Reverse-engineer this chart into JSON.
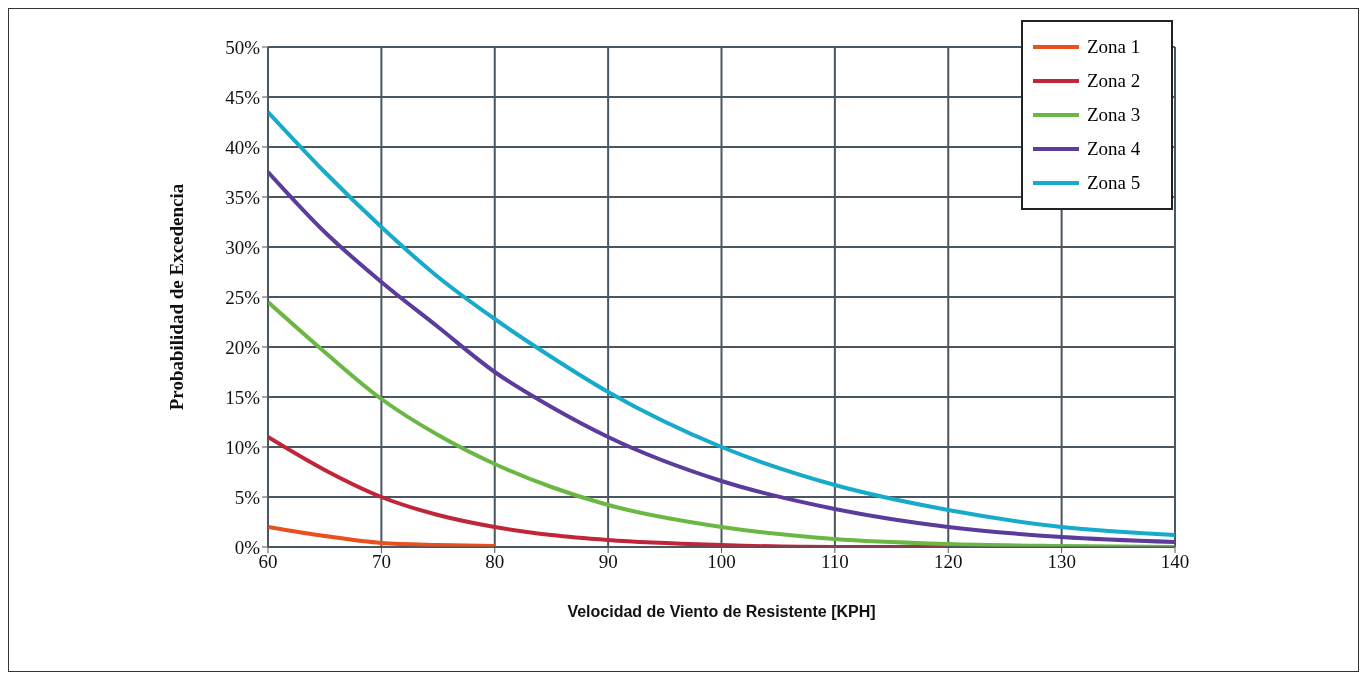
{
  "chart_data": {
    "type": "line",
    "xlabel": "Velocidad de Viento de Resistente [KPH]",
    "ylabel": "Probabilidad de Excedencia",
    "x": [
      60,
      65,
      70,
      75,
      80,
      85,
      90,
      100,
      110,
      120,
      130,
      140
    ],
    "series": [
      {
        "name": "Zona 1",
        "color": "#e8501e",
        "values": [
          2,
          1.1,
          0.4,
          0.2,
          0.1,
          null,
          null,
          null,
          null,
          null,
          null,
          null
        ]
      },
      {
        "name": "Zona 2",
        "color": "#c0253a",
        "values": [
          11,
          7.7,
          5,
          3.2,
          2,
          1.2,
          0.7,
          0.2,
          0,
          0,
          null,
          null
        ]
      },
      {
        "name": "Zona 3",
        "color": "#6bb744",
        "values": [
          24.5,
          19.5,
          14.8,
          11.2,
          8.3,
          6,
          4.2,
          2,
          0.8,
          0.3,
          0.1,
          0
        ]
      },
      {
        "name": "Zona 4",
        "color": "#5b3b9c",
        "values": [
          37.5,
          31.5,
          26.5,
          22,
          17.5,
          14,
          11,
          6.6,
          3.8,
          2,
          1,
          0.5
        ]
      },
      {
        "name": "Zona 5",
        "color": "#16aacb",
        "values": [
          43.5,
          37.5,
          32,
          27,
          22.8,
          19,
          15.5,
          10,
          6.2,
          3.7,
          2,
          1.2
        ]
      }
    ],
    "xlim": [
      60,
      140
    ],
    "xticks": [
      60,
      70,
      80,
      90,
      100,
      110,
      120,
      130,
      140
    ],
    "ylim": [
      0,
      50
    ],
    "yticks": [
      {
        "value": 0,
        "label": "0%"
      },
      {
        "value": 5,
        "label": "5%"
      },
      {
        "value": 10,
        "label": "10%"
      },
      {
        "value": 15,
        "label": "15%"
      },
      {
        "value": 20,
        "label": "20%"
      },
      {
        "value": 25,
        "label": "25%"
      },
      {
        "value": 30,
        "label": "30%"
      },
      {
        "value": 35,
        "label": "35%"
      },
      {
        "value": 40,
        "label": "40%"
      },
      {
        "value": 45,
        "label": "45%"
      },
      {
        "value": 50,
        "label": "50%"
      }
    ],
    "grid": true,
    "legend": "top right",
    "marker": "none",
    "line_style": "solid"
  }
}
